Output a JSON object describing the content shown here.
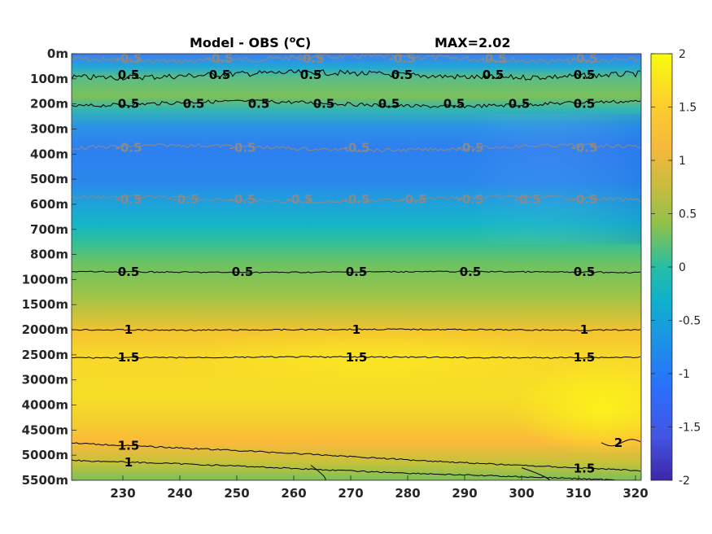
{
  "chart_data": {
    "type": "heatmap",
    "title": "Model - OBS (",
    "title_unit_sup": "o",
    "title_unit_rest": "C)",
    "max_label": "MAX=2.02",
    "x_ticks": [
      "230",
      "240",
      "250",
      "260",
      "270",
      "280",
      "290",
      "300",
      "310",
      "320"
    ],
    "xlim": [
      221,
      321
    ],
    "y_ticks": [
      "0m",
      "100m",
      "200m",
      "300m",
      "400m",
      "500m",
      "600m",
      "700m",
      "800m",
      "1000m",
      "1500m",
      "2000m",
      "2500m",
      "3000m",
      "4000m",
      "4500m",
      "5000m",
      "5500m"
    ],
    "colorbar": {
      "ticks": [
        "2",
        "1.5",
        "1",
        "0.5",
        "0",
        "-0.5",
        "-1",
        "-1.5",
        "-2"
      ],
      "range": [
        -2,
        2
      ]
    },
    "contour_levels": [
      {
        "level": -0.5,
        "depth_index": 0.2,
        "labels": [
          "-0.5",
          "-0.5",
          "-0.5",
          "-0.5",
          "-0.5",
          "-0.5"
        ]
      },
      {
        "level": 0.5,
        "depth_index": 0.85,
        "labels": [
          "0.5",
          "0.5",
          "0.5",
          "0.5",
          "0.5",
          "0.5"
        ]
      },
      {
        "level": 0.5,
        "depth_index": 2.0,
        "labels": [
          "0.5",
          "0.5",
          "0.5",
          "0.5",
          "0.5",
          "0.5",
          "0.5",
          "0.5"
        ]
      },
      {
        "level": -0.5,
        "depth_index": 3.75,
        "labels": [
          "-0.5",
          "-0.5",
          "-0.5",
          "-0.5",
          "-0.5"
        ]
      },
      {
        "level": -0.5,
        "depth_index": 5.8,
        "labels": [
          "-0.5",
          "-0.5",
          "-0.5",
          "-0.5",
          "-0.5",
          "-0.5",
          "-0.5",
          "-0.5",
          "-0.5"
        ]
      },
      {
        "level": 0.5,
        "depth_index": 8.7,
        "labels": [
          "0.5",
          "0.5",
          "0.5",
          "0.5",
          "0.5"
        ]
      },
      {
        "level": 1,
        "depth_index": 11.0,
        "labels": [
          "1",
          "1",
          "1"
        ]
      },
      {
        "level": 1.5,
        "depth_index": 12.1,
        "labels": [
          "1.5",
          "1.5",
          "1.5"
        ]
      },
      {
        "level": 1.5,
        "depth_index": 15.5,
        "labels": [
          "1.5",
          "1.5"
        ]
      },
      {
        "level": 1,
        "depth_index": 16.2,
        "labels": [
          "1"
        ]
      },
      {
        "level": 2,
        "depth_index": 15.5,
        "labels": [
          "2"
        ]
      }
    ]
  }
}
